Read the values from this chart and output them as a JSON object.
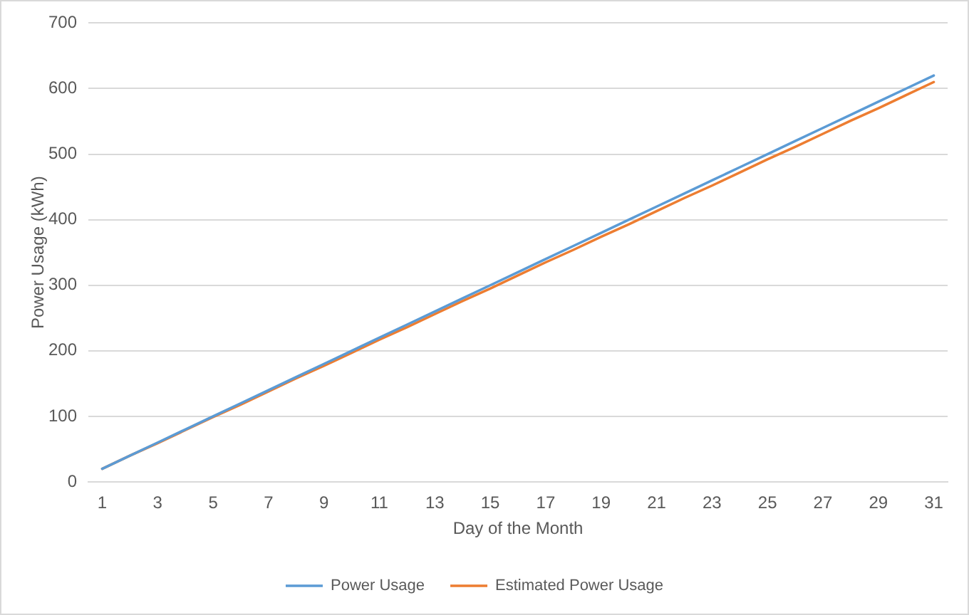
{
  "chart_data": {
    "type": "line",
    "xlabel": "Day of the Month",
    "ylabel": "Power Usage (kWh)",
    "x": [
      1,
      2,
      3,
      4,
      5,
      6,
      7,
      8,
      9,
      10,
      11,
      12,
      13,
      14,
      15,
      16,
      17,
      18,
      19,
      20,
      21,
      22,
      23,
      24,
      25,
      26,
      27,
      28,
      29,
      30,
      31
    ],
    "series": [
      {
        "name": "Power Usage",
        "color": "#5b9bd5",
        "values": [
          20,
          40,
          60,
          80,
          100,
          120,
          140,
          160,
          180,
          200,
          220,
          240,
          260,
          280,
          300,
          320,
          340,
          360,
          380,
          400,
          420,
          440,
          460,
          480,
          500,
          520,
          540,
          560,
          580,
          600,
          620
        ]
      },
      {
        "name": "Estimated Power Usage",
        "color": "#ed7d31",
        "values": [
          20,
          40,
          59,
          79,
          99,
          118,
          138,
          158,
          177,
          197,
          217,
          236,
          256,
          276,
          295,
          315,
          335,
          354,
          374,
          393,
          413,
          433,
          452,
          472,
          492,
          511,
          531,
          551,
          570,
          590,
          610
        ]
      }
    ],
    "xlim": [
      0.5,
      31.5
    ],
    "xticks": [
      1,
      3,
      5,
      7,
      9,
      11,
      13,
      15,
      17,
      19,
      21,
      23,
      25,
      27,
      29,
      31
    ],
    "ylim": [
      0,
      700
    ],
    "yticks": [
      0,
      100,
      200,
      300,
      400,
      500,
      600,
      700
    ],
    "grid": "y",
    "legend": "bottom"
  }
}
